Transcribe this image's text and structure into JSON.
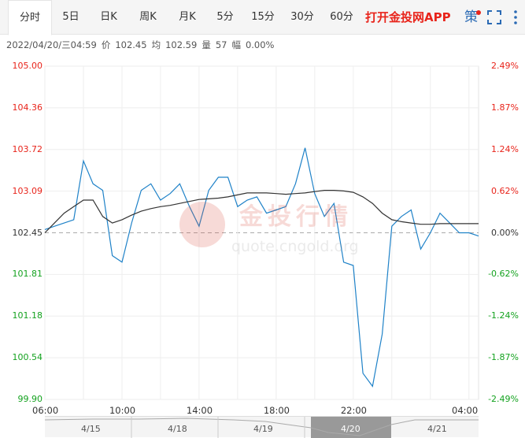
{
  "tabs": [
    {
      "label": "分时",
      "active": true
    },
    {
      "label": "5日"
    },
    {
      "label": "日K"
    },
    {
      "label": "周K"
    },
    {
      "label": "月K"
    },
    {
      "label": "5分"
    },
    {
      "label": "15分"
    },
    {
      "label": "30分"
    },
    {
      "label": "60分"
    }
  ],
  "promo": "打开金投网APP",
  "strategy_label": "策",
  "icons": {
    "fullscreen": "fullscreen-icon",
    "more": "vertical-ellipsis-icon"
  },
  "info": {
    "datetime": "2022/04/20/三04:59",
    "price_label": "价",
    "price": "102.45",
    "avg_label": "均",
    "avg": "102.59",
    "vol_label": "量",
    "vol": "57",
    "change_label": "幅",
    "change": "0.00%"
  },
  "colors": {
    "up": "#e8241b",
    "down": "#14a21f",
    "price_line": "#1f82c8",
    "avg_line": "#333333"
  },
  "watermark": {
    "text": "金投行情",
    "url": "quote.cngold.org"
  },
  "chart_data": {
    "type": "line",
    "y_left_ticks": [
      "105.00",
      "104.36",
      "103.72",
      "103.09",
      "102.45",
      "101.81",
      "101.18",
      "100.54",
      "99.90"
    ],
    "y_right_ticks": [
      "2.49%",
      "1.87%",
      "1.24%",
      "0.62%",
      "0.00%",
      "-0.62%",
      "-1.24%",
      "-1.87%",
      "-2.49%"
    ],
    "ylim": [
      99.9,
      105.0
    ],
    "reference_price": 102.45,
    "x_ticks": [
      "06:00",
      "10:00",
      "14:00",
      "18:00",
      "22:00",
      "04:00"
    ],
    "x": [
      "06:00",
      "06:30",
      "07:00",
      "07:30",
      "08:00",
      "08:30",
      "09:00",
      "09:30",
      "10:00",
      "10:30",
      "11:00",
      "11:30",
      "12:00",
      "12:30",
      "13:00",
      "13:30",
      "14:00",
      "14:30",
      "15:00",
      "15:30",
      "16:00",
      "16:30",
      "17:00",
      "17:30",
      "18:00",
      "18:30",
      "19:00",
      "19:30",
      "20:00",
      "20:30",
      "21:00",
      "21:30",
      "22:00",
      "22:30",
      "23:00",
      "23:30",
      "00:00",
      "00:30",
      "01:00",
      "01:30",
      "02:00",
      "02:30",
      "03:00",
      "03:30",
      "04:00",
      "04:30"
    ],
    "series": [
      {
        "values": [
          102.5,
          102.55,
          102.6,
          102.65,
          103.55,
          103.2,
          103.1,
          102.1,
          102.0,
          102.6,
          103.1,
          103.2,
          102.95,
          103.05,
          103.2,
          102.85,
          102.55,
          103.1,
          103.3,
          103.3,
          102.85,
          102.95,
          103.0,
          102.75,
          102.8,
          102.85,
          103.2,
          103.75,
          103.05,
          102.7,
          102.9,
          102.0,
          101.95,
          100.3,
          100.1,
          100.9,
          102.55,
          102.7,
          102.8,
          102.2,
          102.45,
          102.75,
          102.6,
          102.45,
          102.45,
          102.4
        ]
      },
      {
        "values": [
          102.45,
          102.6,
          102.75,
          102.85,
          102.95,
          102.95,
          102.7,
          102.6,
          102.65,
          102.72,
          102.78,
          102.82,
          102.85,
          102.87,
          102.9,
          102.93,
          102.96,
          102.97,
          102.98,
          103.0,
          103.03,
          103.06,
          103.06,
          103.06,
          103.05,
          103.04,
          103.05,
          103.06,
          103.08,
          103.1,
          103.1,
          103.09,
          103.07,
          103.0,
          102.9,
          102.75,
          102.65,
          102.62,
          102.6,
          102.58,
          102.58,
          102.59,
          102.59,
          102.59,
          102.59,
          102.59
        ]
      }
    ]
  },
  "navigator": {
    "labels": [
      "4/15",
      "4/18",
      "4/19",
      "4/20",
      "4/21"
    ],
    "selected": "4/20"
  }
}
